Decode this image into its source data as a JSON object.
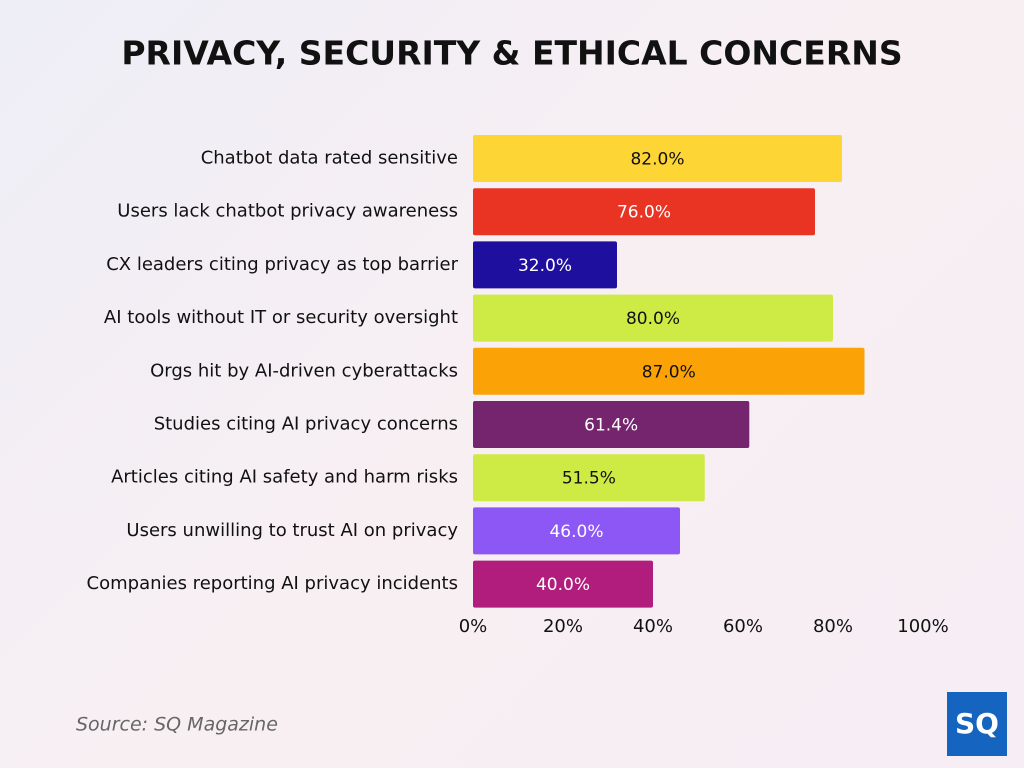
{
  "chart_data": {
    "type": "hbar",
    "title": "PRIVACY, SECURITY & ETHICAL CONCERNS",
    "categories": [
      "Chatbot data rated sensitive",
      "Users lack chatbot privacy awareness",
      "CX leaders citing privacy as top barrier",
      "AI tools without IT or security oversight",
      "Orgs hit by AI-driven cyberattacks",
      "Studies citing AI privacy concerns",
      "Articles citing AI safety and harm risks",
      "Users unwilling to trust AI on privacy",
      "Companies reporting AI privacy incidents"
    ],
    "values": [
      82.0,
      76.0,
      32.0,
      80.0,
      87.0,
      61.4,
      51.5,
      46.0,
      40.0
    ],
    "value_labels": [
      "82.0%",
      "76.0%",
      "32.0%",
      "80.0%",
      "87.0%",
      "61.4%",
      "51.5%",
      "46.0%",
      "40.0%"
    ],
    "colors": [
      "#fdd535",
      "#e93323",
      "#1f0f9e",
      "#cdea45",
      "#fba306",
      "#74256e",
      "#cdea45",
      "#8c57f5",
      "#b01d7c"
    ],
    "xlim": [
      0,
      100
    ],
    "xticks": [
      {
        "value": 0,
        "label": "0%"
      },
      {
        "value": 20,
        "label": "20%"
      },
      {
        "value": 40,
        "label": "40%"
      },
      {
        "value": 60,
        "label": "60%"
      },
      {
        "value": 80,
        "label": "80%"
      },
      {
        "value": 100,
        "label": "100%"
      }
    ],
    "source": "Source: SQ Magazine",
    "logo": "SQ"
  }
}
